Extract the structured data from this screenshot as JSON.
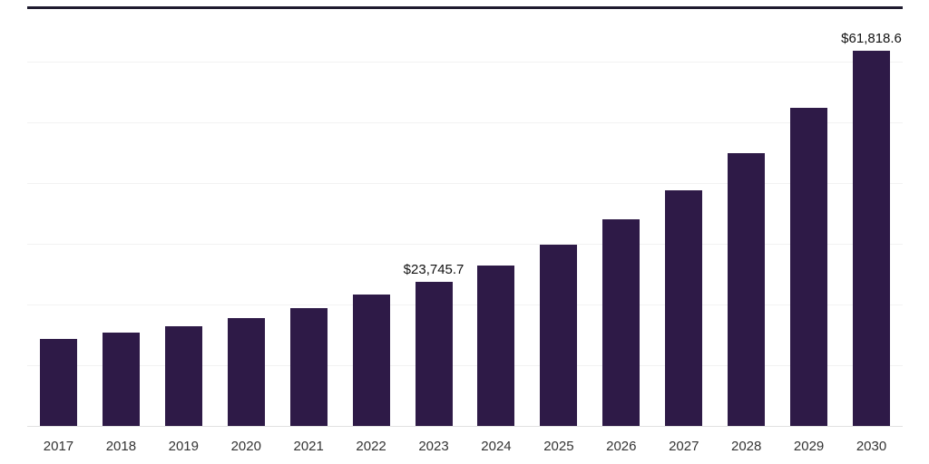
{
  "chart_data": {
    "type": "bar",
    "title": "",
    "xlabel": "",
    "ylabel": "",
    "categories": [
      "2017",
      "2018",
      "2019",
      "2020",
      "2021",
      "2022",
      "2023",
      "2024",
      "2025",
      "2026",
      "2027",
      "2028",
      "2029",
      "2030"
    ],
    "values": [
      14300,
      15350,
      16400,
      17750,
      19400,
      21600,
      23745.7,
      26400,
      29800,
      34000,
      38900,
      45000,
      52400,
      61818.6
    ],
    "labeled_points": [
      {
        "category": "2023",
        "label": "$23,745.7"
      },
      {
        "category": "2030",
        "label": "$61,818.6"
      }
    ],
    "ylim": [
      0,
      69000
    ],
    "grid": "horizontal",
    "gridline_step": 10000,
    "legend": "none",
    "bar_color": "#2e1a47",
    "gridline_color": "#f2f2f2",
    "baseline_color": "#e2e2e2",
    "top_border_color": "#1e1b2e"
  }
}
